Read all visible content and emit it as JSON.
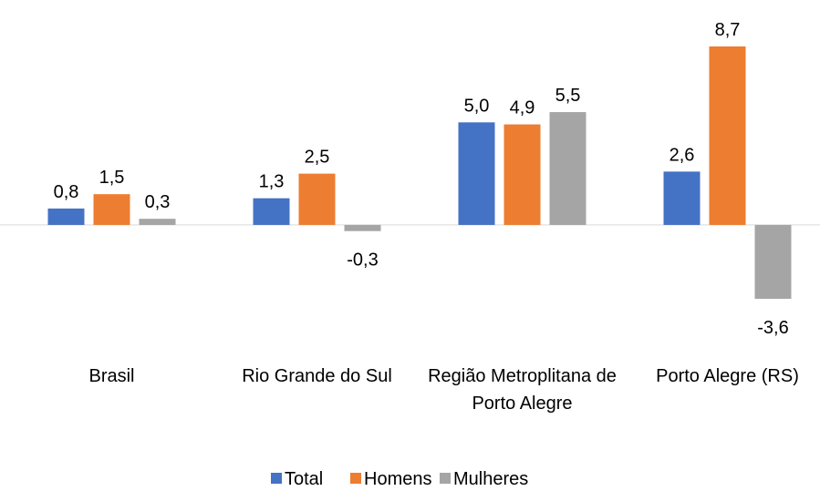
{
  "chart_data": {
    "type": "bar",
    "categories": [
      "Brasil",
      "Rio Grande do Sul",
      "Região Metroplitana de Porto Alegre",
      "Porto Alegre (RS)"
    ],
    "series": [
      {
        "name": "Total",
        "color": "#4472c4",
        "values": [
          0.8,
          1.3,
          5.0,
          2.6
        ],
        "value_labels": [
          "0,8",
          "1,3",
          "5,0",
          "2,6"
        ]
      },
      {
        "name": "Homens",
        "color": "#ed7d31",
        "values": [
          1.5,
          2.5,
          4.9,
          8.7
        ],
        "value_labels": [
          "1,5",
          "2,5",
          "4,9",
          "8,7"
        ]
      },
      {
        "name": "Mulheres",
        "color": "#a5a5a5",
        "values": [
          0.3,
          -0.3,
          5.5,
          -3.6
        ],
        "value_labels": [
          "0,3",
          "-0,3",
          "5,5",
          "-3,6"
        ]
      }
    ],
    "negative_label_color": "#ff0000",
    "legend": "bottom"
  }
}
